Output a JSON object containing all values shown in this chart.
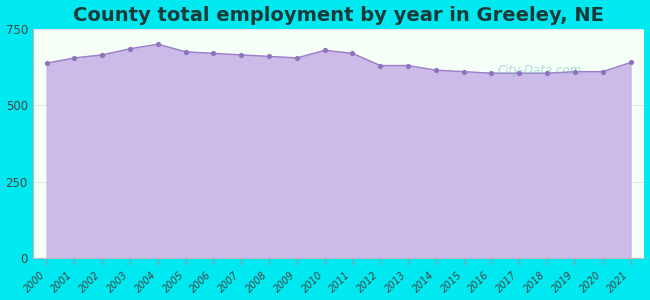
{
  "title": "County total employment by year in Greeley, NE",
  "years": [
    2000,
    2001,
    2002,
    2003,
    2004,
    2005,
    2006,
    2007,
    2008,
    2009,
    2010,
    2011,
    2012,
    2013,
    2014,
    2015,
    2016,
    2017,
    2018,
    2019,
    2020,
    2021
  ],
  "values": [
    638,
    655,
    665,
    685,
    700,
    675,
    670,
    665,
    660,
    655,
    680,
    670,
    630,
    630,
    615,
    610,
    605,
    605,
    605,
    610,
    610,
    640
  ],
  "ylim": [
    0,
    750
  ],
  "yticks": [
    0,
    250,
    500,
    750
  ],
  "line_color": "#9b80c8",
  "fill_color": "#c8b4e8",
  "marker_color": "#8e72bf",
  "bg_color": "#00e8f0",
  "plot_bg": "#f5fff8",
  "title_fontsize": 14,
  "title_color": "#1a3a3a",
  "tick_color": "#444444",
  "watermark": "City-Data.com"
}
